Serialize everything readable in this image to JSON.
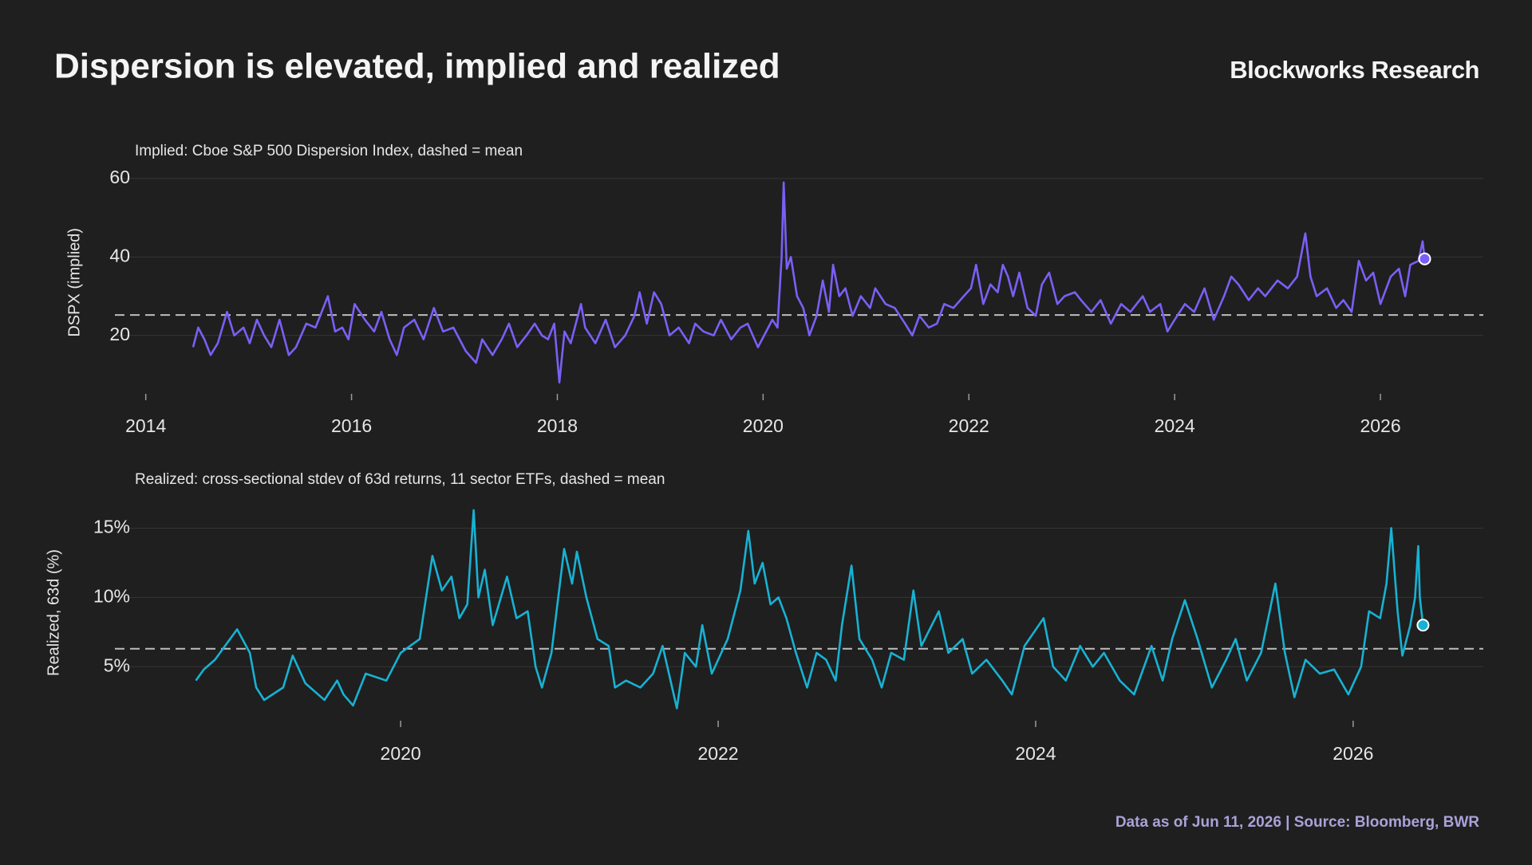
{
  "title": "Dispersion is elevated, implied and realized",
  "brand": "Blockworks Research",
  "footer": "Data as of Jun 11, 2026 | Source: Bloomberg, BWR",
  "chart_data": [
    {
      "type": "line",
      "subtitle": "Implied: Cboe S&P 500 Dispersion Index, dashed = mean",
      "ylabel": "DSPX (implied)",
      "x": [
        2014.46,
        2014.51,
        2014.57,
        2014.63,
        2014.7,
        2014.79,
        2014.86,
        2014.95,
        2015.01,
        2015.08,
        2015.15,
        2015.22,
        2015.3,
        2015.39,
        2015.46,
        2015.56,
        2015.65,
        2015.77,
        2015.84,
        2015.91,
        2015.97,
        2016.03,
        2016.13,
        2016.22,
        2016.29,
        2016.37,
        2016.44,
        2016.51,
        2016.61,
        2016.7,
        2016.8,
        2016.89,
        2016.99,
        2017.11,
        2017.21,
        2017.27,
        2017.37,
        2017.46,
        2017.53,
        2017.61,
        2017.7,
        2017.78,
        2017.85,
        2017.91,
        2017.97,
        2018.02,
        2018.07,
        2018.13,
        2018.23,
        2018.27,
        2018.37,
        2018.47,
        2018.56,
        2018.66,
        2018.75,
        2018.8,
        2018.87,
        2018.94,
        2019.01,
        2019.09,
        2019.18,
        2019.28,
        2019.34,
        2019.42,
        2019.52,
        2019.59,
        2019.69,
        2019.78,
        2019.85,
        2019.95,
        2020.01,
        2020.09,
        2020.14,
        2020.18,
        2020.2,
        2020.23,
        2020.27,
        2020.33,
        2020.39,
        2020.45,
        2020.52,
        2020.58,
        2020.64,
        2020.68,
        2020.74,
        2020.8,
        2020.87,
        2020.95,
        2021.04,
        2021.09,
        2021.19,
        2021.28,
        2021.38,
        2021.45,
        2021.52,
        2021.61,
        2021.69,
        2021.76,
        2021.85,
        2021.95,
        2022.02,
        2022.07,
        2022.14,
        2022.21,
        2022.28,
        2022.33,
        2022.38,
        2022.43,
        2022.49,
        2022.57,
        2022.65,
        2022.71,
        2022.78,
        2022.86,
        2022.93,
        2023.03,
        2023.09,
        2023.19,
        2023.28,
        2023.38,
        2023.48,
        2023.57,
        2023.69,
        2023.76,
        2023.86,
        2023.93,
        2024.0,
        2024.1,
        2024.19,
        2024.29,
        2024.38,
        2024.48,
        2024.55,
        2024.62,
        2024.72,
        2024.81,
        2024.88,
        2025.0,
        2025.1,
        2025.19,
        2025.27,
        2025.32,
        2025.38,
        2025.48,
        2025.57,
        2025.64,
        2025.72,
        2025.79,
        2025.86,
        2025.93,
        2026.0,
        2026.1,
        2026.18,
        2026.24,
        2026.29,
        2026.37,
        2026.41,
        2026.43
      ],
      "series": [
        {
          "color": "#7b5ff5",
          "values": [
            17,
            22,
            19,
            15,
            18,
            26,
            20,
            22,
            18,
            24,
            20,
            17,
            24,
            15,
            17,
            23,
            22,
            30,
            21,
            22,
            19,
            28,
            24,
            21,
            26,
            19,
            15,
            22,
            24,
            19,
            27,
            21,
            22,
            16,
            13,
            19,
            15,
            19,
            23,
            17,
            20,
            23,
            20,
            19,
            23,
            8,
            21,
            18,
            28,
            22,
            18,
            24,
            17,
            20,
            25,
            31,
            23,
            31,
            28,
            20,
            22,
            18,
            23,
            21,
            20,
            24,
            19,
            22,
            23,
            17,
            20,
            24,
            22,
            40,
            59,
            37,
            40,
            30,
            27,
            20,
            25,
            34,
            26,
            38,
            30,
            32,
            25,
            30,
            27,
            32,
            28,
            27,
            23,
            20,
            25,
            22,
            23,
            28,
            27,
            30,
            32,
            38,
            28,
            33,
            31,
            38,
            35,
            30,
            36,
            27,
            25,
            33,
            36,
            28,
            30,
            31,
            29,
            26,
            29,
            23,
            28,
            26,
            30,
            26,
            28,
            21,
            24,
            28,
            26,
            32,
            24,
            30,
            35,
            33,
            29,
            32,
            30,
            34,
            32,
            35,
            46,
            35,
            30,
            32,
            27,
            29,
            26,
            39,
            34,
            36,
            28,
            35,
            37,
            30,
            38,
            39,
            44,
            39.5
          ]
        }
      ],
      "mean": 25.2,
      "mean_color": "#bdbdbd",
      "last_point_marker": true,
      "xlim": [
        2013.7,
        2027.0
      ],
      "xticks": [
        2014,
        2016,
        2018,
        2020,
        2022,
        2024,
        2026
      ],
      "ylim": [
        6,
        61
      ],
      "yticks": [
        20,
        40,
        60
      ],
      "grid": "y"
    },
    {
      "type": "line",
      "subtitle": "Realized: cross-sectional stdev of 63d returns, 11 sector ETFs, dashed = mean",
      "ylabel": "Realized, 63d (%)",
      "x": [
        2018.71,
        2018.76,
        2018.83,
        2018.97,
        2019.05,
        2019.09,
        2019.14,
        2019.26,
        2019.32,
        2019.4,
        2019.46,
        2019.52,
        2019.6,
        2019.64,
        2019.7,
        2019.78,
        2019.91,
        2020.0,
        2020.12,
        2020.2,
        2020.26,
        2020.32,
        2020.37,
        2020.42,
        2020.46,
        2020.49,
        2020.53,
        2020.58,
        2020.67,
        2020.73,
        2020.8,
        2020.85,
        2020.89,
        2020.95,
        2021.03,
        2021.08,
        2021.11,
        2021.17,
        2021.24,
        2021.31,
        2021.35,
        2021.42,
        2021.51,
        2021.59,
        2021.65,
        2021.74,
        2021.79,
        2021.86,
        2021.9,
        2021.96,
        2022.06,
        2022.14,
        2022.19,
        2022.23,
        2022.28,
        2022.33,
        2022.38,
        2022.43,
        2022.49,
        2022.56,
        2022.62,
        2022.68,
        2022.74,
        2022.78,
        2022.84,
        2022.89,
        2022.97,
        2023.03,
        2023.09,
        2023.17,
        2023.23,
        2023.28,
        2023.39,
        2023.45,
        2023.54,
        2023.6,
        2023.69,
        2023.79,
        2023.85,
        2023.93,
        2024.05,
        2024.11,
        2024.19,
        2024.28,
        2024.36,
        2024.43,
        2024.53,
        2024.62,
        2024.73,
        2024.8,
        2024.86,
        2024.94,
        2025.02,
        2025.11,
        2025.2,
        2025.26,
        2025.33,
        2025.42,
        2025.51,
        2025.57,
        2025.63,
        2025.7,
        2025.79,
        2025.88,
        2025.97,
        2026.05,
        2026.1,
        2026.17,
        2026.21,
        2026.24,
        2026.28,
        2026.31,
        2026.36,
        2026.39,
        2026.41,
        2026.42,
        2026.44
      ],
      "series": [
        {
          "color": "#17b2d3",
          "values": [
            4,
            4.8,
            5.5,
            7.7,
            6,
            3.5,
            2.6,
            3.5,
            5.8,
            3.8,
            3.2,
            2.6,
            4,
            3,
            2.2,
            4.5,
            4,
            6,
            7,
            13,
            10.5,
            11.5,
            8.5,
            9.5,
            16.3,
            10,
            12,
            8,
            11.5,
            8.5,
            9,
            5,
            3.5,
            6,
            13.5,
            11,
            13.3,
            10,
            7,
            6.5,
            3.5,
            4,
            3.5,
            4.5,
            6.5,
            2,
            6,
            5,
            8,
            4.5,
            7,
            10.5,
            14.8,
            11,
            12.5,
            9.5,
            10,
            8.5,
            6,
            3.5,
            6,
            5.5,
            4,
            8,
            12.3,
            7,
            5.5,
            3.5,
            6,
            5.5,
            10.5,
            6.5,
            9,
            6,
            7,
            4.5,
            5.5,
            4,
            3,
            6.5,
            8.5,
            5,
            4,
            6.5,
            5,
            6,
            4,
            3,
            6.5,
            4,
            7,
            9.8,
            7,
            3.5,
            5.5,
            7,
            4,
            6,
            11,
            6,
            2.8,
            5.5,
            4.5,
            4.8,
            3,
            5,
            9,
            8.5,
            11,
            15,
            9,
            5.8,
            8,
            10,
            13.7,
            10,
            8
          ]
        }
      ],
      "mean": 6.3,
      "mean_color": "#bdbdbd",
      "last_point_marker": true,
      "xlim": [
        2018.2,
        2026.82
      ],
      "xticks": [
        2020,
        2022,
        2024,
        2026
      ],
      "ylim": [
        1.3,
        16.5
      ],
      "yticks": [
        {
          "value": 5,
          "label": "5%"
        },
        {
          "value": 10,
          "label": "10%"
        },
        {
          "value": 15,
          "label": "15%"
        }
      ],
      "grid": "y"
    }
  ]
}
